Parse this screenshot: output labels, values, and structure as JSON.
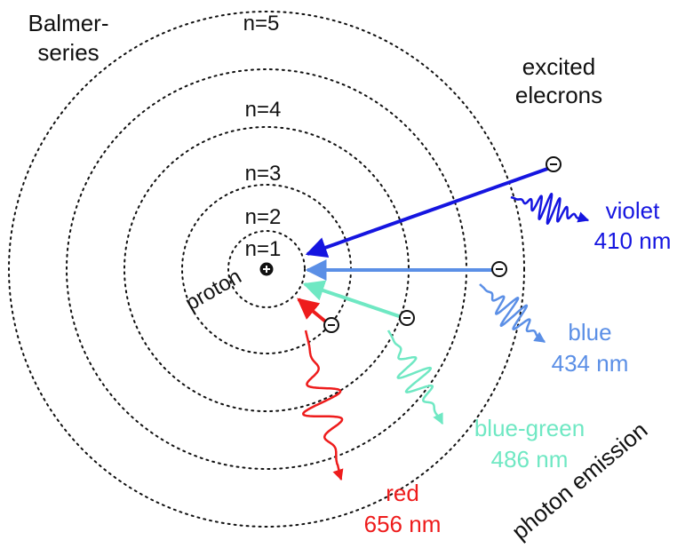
{
  "series_title": {
    "line1": "Balmer-",
    "line2": "series"
  },
  "excited_label": {
    "line1": "excited",
    "line2": "elecrons"
  },
  "levels": [
    {
      "label": "n=1"
    },
    {
      "label": "n=2"
    },
    {
      "label": "n=3"
    },
    {
      "label": "n=4"
    },
    {
      "label": "n=5"
    }
  ],
  "nucleus": {
    "label": "proton",
    "sign": "+"
  },
  "emission_label": "photon emission",
  "transitions": [
    {
      "name": "violet",
      "color_label": "violet",
      "wavelength_label": "410 nm",
      "color": "#1515e0"
    },
    {
      "name": "blue",
      "color_label": "blue",
      "wavelength_label": "434 nm",
      "color": "#5b8fe6"
    },
    {
      "name": "blue-green",
      "color_label": "blue-green",
      "wavelength_label": "486 nm",
      "color": "#6fe8c3"
    },
    {
      "name": "red",
      "color_label": "red",
      "wavelength_label": "656 nm",
      "color": "#ee1c1c"
    }
  ],
  "colors": {
    "ink": "#111111"
  }
}
